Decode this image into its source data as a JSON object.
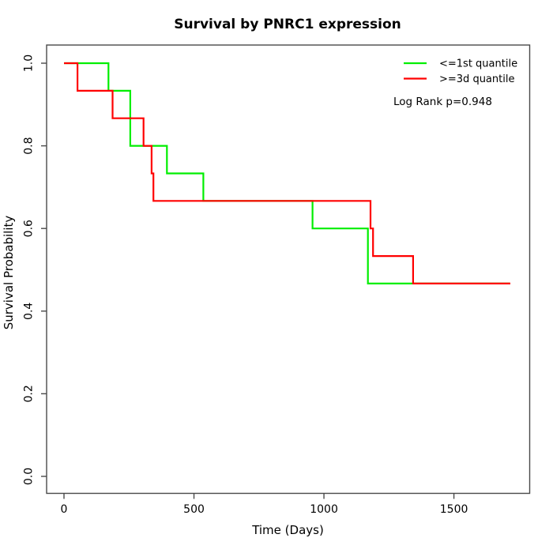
{
  "title": "Survival by PNRC1 expression",
  "chart_data": {
    "type": "line",
    "subtype": "kaplan-meier-step",
    "title": "Survival by PNRC1 expression",
    "xlabel": "Time (Days)",
    "ylabel": "Survival Probability",
    "xlim": [
      0,
      1790
    ],
    "ylim": [
      0,
      1
    ],
    "xticks": [
      0,
      500,
      1000,
      1500
    ],
    "yticks": [
      0.0,
      0.2,
      0.4,
      0.6,
      0.8,
      1.0
    ],
    "ytick_labels": [
      "0.0",
      "0.2",
      "0.4",
      "0.6",
      "0.8",
      "1.0"
    ],
    "grid": false,
    "legend_position": "top-right",
    "annotation": "Log Rank p=0.948",
    "frame_color": "#4a4a4a",
    "series": [
      {
        "name": "<=1st quantile",
        "color": "#00ee00",
        "end_time": 1715,
        "steps": [
          [
            0,
            1.0
          ],
          [
            171,
            0.9333
          ],
          [
            255,
            0.8
          ],
          [
            396,
            0.7333
          ],
          [
            536,
            0.6667
          ],
          [
            956,
            0.6
          ],
          [
            1169,
            0.4667
          ]
        ]
      },
      {
        "name": ">=3d quantile",
        "color": "#ff0000",
        "end_time": 1717,
        "steps": [
          [
            0,
            1.0
          ],
          [
            52,
            0.9333
          ],
          [
            187,
            0.8667
          ],
          [
            306,
            0.8
          ],
          [
            337,
            0.7333
          ],
          [
            344,
            0.6667
          ],
          [
            1179,
            0.6
          ],
          [
            1189,
            0.5333
          ],
          [
            1343,
            0.4667
          ]
        ]
      }
    ]
  }
}
